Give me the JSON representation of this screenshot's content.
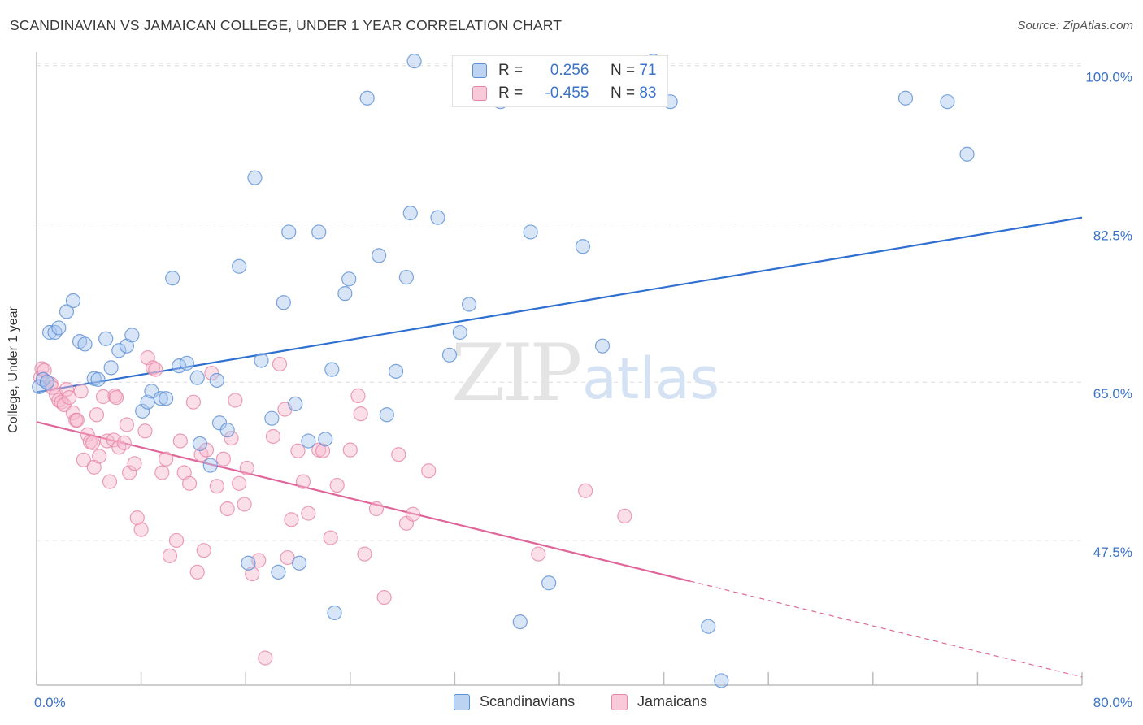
{
  "header": {
    "title": "SCANDINAVIAN VS JAMAICAN COLLEGE, UNDER 1 YEAR CORRELATION CHART",
    "source": "Source: ZipAtlas.com"
  },
  "watermark": {
    "zip": "ZIP",
    "atlas": "atlas"
  },
  "legend_top": {
    "rows": [
      {
        "r_label": "R =",
        "r_value": "0.256",
        "n_label": "N =",
        "n_value": "71"
      },
      {
        "r_label": "R =",
        "r_value": "-0.455",
        "n_label": "N =",
        "n_value": "83"
      }
    ]
  },
  "legend_bottom": {
    "items": [
      "Scandinavians",
      "Jamaicans"
    ]
  },
  "colors": {
    "blue_fill": "#a8c6ee",
    "blue_stroke": "#5b8fd6",
    "blue_line": "#2f6fcf",
    "pink_fill": "#f6b8cc",
    "pink_stroke": "#e686a6",
    "pink_line": "#e0659a",
    "axis_label": "#3a73c9",
    "grid": "#dcdcdc"
  },
  "chart_data": {
    "type": "scatter",
    "title": "SCANDINAVIAN VS JAMAICAN COLLEGE, UNDER 1 YEAR CORRELATION CHART",
    "xlabel": "",
    "ylabel": "College, Under 1 year",
    "xlim": [
      0,
      80
    ],
    "ylim": [
      31.5,
      101.5
    ],
    "x_tick_labels": [
      "0.0%",
      "80.0%"
    ],
    "y_ticks": [
      47.5,
      65.0,
      82.5,
      100.0
    ],
    "y_tick_labels": [
      "47.5%",
      "65.0%",
      "82.5%",
      "100.0%"
    ],
    "grid": true,
    "legend_position": "top-center",
    "series": [
      {
        "name": "Scandinavians",
        "r": 0.256,
        "n": 71,
        "trend": {
          "x": [
            0,
            80
          ],
          "y": [
            63.9,
            83.2
          ]
        },
        "points": [
          [
            0.2,
            64.5
          ],
          [
            0.5,
            65.3
          ],
          [
            0.8,
            65.0
          ],
          [
            1.0,
            70.5
          ],
          [
            1.4,
            70.5
          ],
          [
            1.7,
            71.0
          ],
          [
            2.3,
            72.8
          ],
          [
            2.8,
            74.0
          ],
          [
            3.3,
            69.5
          ],
          [
            3.7,
            69.2
          ],
          [
            4.4,
            65.4
          ],
          [
            4.7,
            65.3
          ],
          [
            5.3,
            69.8
          ],
          [
            5.7,
            66.6
          ],
          [
            6.3,
            68.5
          ],
          [
            6.9,
            69.0
          ],
          [
            7.3,
            70.2
          ],
          [
            8.1,
            61.8
          ],
          [
            8.5,
            62.8
          ],
          [
            8.8,
            64.0
          ],
          [
            9.5,
            63.2
          ],
          [
            9.9,
            63.2
          ],
          [
            10.4,
            76.5
          ],
          [
            10.9,
            66.8
          ],
          [
            11.5,
            67.1
          ],
          [
            12.3,
            65.5
          ],
          [
            12.5,
            58.2
          ],
          [
            13.3,
            55.8
          ],
          [
            13.8,
            65.2
          ],
          [
            14.0,
            60.5
          ],
          [
            14.6,
            59.7
          ],
          [
            15.5,
            77.8
          ],
          [
            16.2,
            45.0
          ],
          [
            16.7,
            87.6
          ],
          [
            17.2,
            67.4
          ],
          [
            18.0,
            61.0
          ],
          [
            18.5,
            44.0
          ],
          [
            18.9,
            73.8
          ],
          [
            19.3,
            81.6
          ],
          [
            19.8,
            62.6
          ],
          [
            20.1,
            45.0
          ],
          [
            20.8,
            58.5
          ],
          [
            21.6,
            81.6
          ],
          [
            22.1,
            58.7
          ],
          [
            22.6,
            66.4
          ],
          [
            22.8,
            39.5
          ],
          [
            23.6,
            74.8
          ],
          [
            23.9,
            76.4
          ],
          [
            25.3,
            96.4
          ],
          [
            26.2,
            79.0
          ],
          [
            26.8,
            61.4
          ],
          [
            27.5,
            66.2
          ],
          [
            28.3,
            76.6
          ],
          [
            28.6,
            83.7
          ],
          [
            28.9,
            100.5
          ],
          [
            30.7,
            83.2
          ],
          [
            31.6,
            68.0
          ],
          [
            32.4,
            70.5
          ],
          [
            33.1,
            73.6
          ],
          [
            35.5,
            96.0
          ],
          [
            37.0,
            38.5
          ],
          [
            37.8,
            81.6
          ],
          [
            39.2,
            42.8
          ],
          [
            41.8,
            80.0
          ],
          [
            43.3,
            69.0
          ],
          [
            47.2,
            100.5
          ],
          [
            48.5,
            96.0
          ],
          [
            51.4,
            38.0
          ],
          [
            52.4,
            32.0
          ],
          [
            66.5,
            96.4
          ],
          [
            69.7,
            96.0
          ],
          [
            71.2,
            90.2
          ]
        ]
      },
      {
        "name": "Jamaicans",
        "r": -0.455,
        "n": 83,
        "trend": {
          "x": [
            0,
            50
          ],
          "y": [
            60.6,
            43.0
          ]
        },
        "trend_dashed": {
          "x": [
            50,
            80
          ],
          "y": [
            43.0,
            32.4
          ]
        },
        "points": [
          [
            0.3,
            65.5
          ],
          [
            0.4,
            66.5
          ],
          [
            0.6,
            66.3
          ],
          [
            0.8,
            65.0
          ],
          [
            1.1,
            64.8
          ],
          [
            1.2,
            64.4
          ],
          [
            1.5,
            63.6
          ],
          [
            1.7,
            63.0
          ],
          [
            1.9,
            62.8
          ],
          [
            2.1,
            62.5
          ],
          [
            2.3,
            64.2
          ],
          [
            2.5,
            63.3
          ],
          [
            2.8,
            61.6
          ],
          [
            3.0,
            60.8
          ],
          [
            3.1,
            60.8
          ],
          [
            3.4,
            64.0
          ],
          [
            3.6,
            56.4
          ],
          [
            3.9,
            59.2
          ],
          [
            4.1,
            58.4
          ],
          [
            4.3,
            58.3
          ],
          [
            4.4,
            55.6
          ],
          [
            4.6,
            61.4
          ],
          [
            4.8,
            56.8
          ],
          [
            5.1,
            63.4
          ],
          [
            5.4,
            58.5
          ],
          [
            5.6,
            54.0
          ],
          [
            5.9,
            58.6
          ],
          [
            6.0,
            63.5
          ],
          [
            6.1,
            63.3
          ],
          [
            6.3,
            57.8
          ],
          [
            6.7,
            58.3
          ],
          [
            6.9,
            60.3
          ],
          [
            7.1,
            55.0
          ],
          [
            7.5,
            56.0
          ],
          [
            7.7,
            50.0
          ],
          [
            8.0,
            48.7
          ],
          [
            8.3,
            59.6
          ],
          [
            8.5,
            67.7
          ],
          [
            8.9,
            66.6
          ],
          [
            9.1,
            66.4
          ],
          [
            9.6,
            55.0
          ],
          [
            9.9,
            56.5
          ],
          [
            10.2,
            45.8
          ],
          [
            10.7,
            47.5
          ],
          [
            11.0,
            58.5
          ],
          [
            11.3,
            55.0
          ],
          [
            11.7,
            53.8
          ],
          [
            12.0,
            62.8
          ],
          [
            12.3,
            44.0
          ],
          [
            12.6,
            57.0
          ],
          [
            12.8,
            46.4
          ],
          [
            13.0,
            57.5
          ],
          [
            13.4,
            66.0
          ],
          [
            13.8,
            53.5
          ],
          [
            14.3,
            56.5
          ],
          [
            14.6,
            51.0
          ],
          [
            14.9,
            58.8
          ],
          [
            15.2,
            63.0
          ],
          [
            15.5,
            53.8
          ],
          [
            15.9,
            51.5
          ],
          [
            16.1,
            55.5
          ],
          [
            16.5,
            43.8
          ],
          [
            17.0,
            45.3
          ],
          [
            17.5,
            34.5
          ],
          [
            18.1,
            59.0
          ],
          [
            18.6,
            67.0
          ],
          [
            19.0,
            62.0
          ],
          [
            19.2,
            45.6
          ],
          [
            19.5,
            49.8
          ],
          [
            20.0,
            57.4
          ],
          [
            20.4,
            54.0
          ],
          [
            20.8,
            50.5
          ],
          [
            21.6,
            57.5
          ],
          [
            21.9,
            57.4
          ],
          [
            22.5,
            47.8
          ],
          [
            23.0,
            53.6
          ],
          [
            24.0,
            57.5
          ],
          [
            24.6,
            63.5
          ],
          [
            24.8,
            61.5
          ],
          [
            25.1,
            46.0
          ],
          [
            26.0,
            51.0
          ],
          [
            26.6,
            41.2
          ],
          [
            27.7,
            57.0
          ],
          [
            28.3,
            49.4
          ],
          [
            28.8,
            50.4
          ],
          [
            30.0,
            55.2
          ],
          [
            38.4,
            46.0
          ],
          [
            42.0,
            53.0
          ],
          [
            45.0,
            50.2
          ]
        ]
      }
    ]
  }
}
